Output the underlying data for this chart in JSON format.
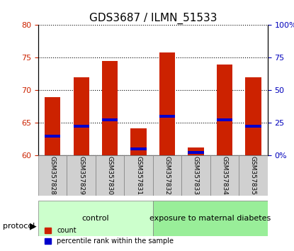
{
  "title": "GDS3687 / ILMN_51533",
  "categories": [
    "GSM357828",
    "GSM357829",
    "GSM357830",
    "GSM357831",
    "GSM357832",
    "GSM357833",
    "GSM357834",
    "GSM357835"
  ],
  "bar_tops": [
    69.0,
    72.0,
    74.5,
    64.2,
    75.8,
    61.3,
    74.0,
    72.0
  ],
  "bar_bottom": 60.0,
  "percentile_values": [
    63.0,
    64.5,
    65.5,
    61.0,
    66.0,
    60.5,
    65.5,
    64.5
  ],
  "ylim": [
    60,
    80
  ],
  "yticks_left": [
    60,
    65,
    70,
    75,
    80
  ],
  "yticks_right": [
    0,
    25,
    50,
    75,
    100
  ],
  "bar_color": "#cc2200",
  "percentile_color": "#0000cc",
  "bar_width": 0.55,
  "groups": [
    {
      "label": "control",
      "start": 0,
      "end": 4,
      "color": "#ccffcc"
    },
    {
      "label": "exposure to maternal diabetes",
      "start": 4,
      "end": 8,
      "color": "#99ee99"
    }
  ],
  "protocol_label": "protocol",
  "legend_items": [
    {
      "label": "count",
      "color": "#cc2200"
    },
    {
      "label": "percentile rank within the sample",
      "color": "#0000cc"
    }
  ],
  "grid_color": "#000000",
  "tick_label_color_left": "#cc2200",
  "tick_label_color_right": "#0000bb",
  "figsize": [
    4.15,
    3.54
  ],
  "dpi": 100
}
